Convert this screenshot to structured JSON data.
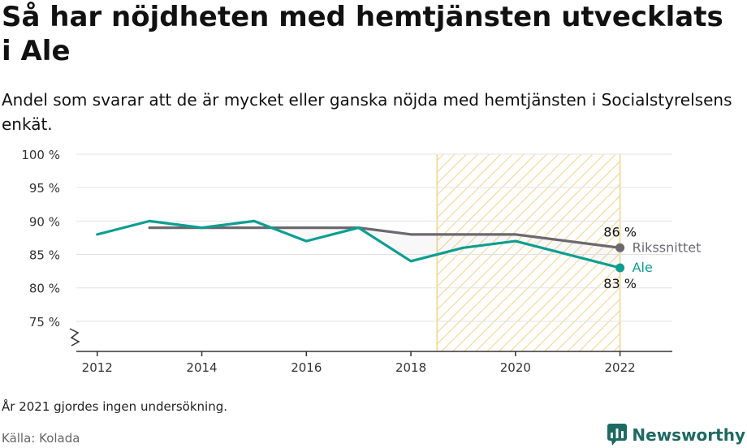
{
  "title": "Så har nöjdheten med hemtjänsten utvecklats i Ale",
  "subtitle": "Andel som svarar att de är mycket eller ganska nöjda med hemtjänsten i Socialstyrelsens enkät.",
  "footnote": "År 2021 gjordes ingen undersökning.",
  "source": "Källa: Kolada",
  "brand": {
    "name": "Newsworthy",
    "icon": "newsworthy-logo-icon"
  },
  "colors": {
    "ale": "#0e9e91",
    "riket": "#6b6870",
    "hatch": "#f5d289",
    "grid": "#e3e3e3",
    "axis": "#333333",
    "brand": "#1d6a63"
  },
  "chart_data": {
    "type": "line",
    "x": [
      2012,
      2013,
      2014,
      2015,
      2016,
      2017,
      2018,
      2019,
      2020,
      2022
    ],
    "xticks": [
      2012,
      2014,
      2016,
      2018,
      2020,
      2022
    ],
    "xtick_labels": [
      "2012",
      "2014",
      "2016",
      "2018",
      "2020",
      "2022"
    ],
    "yticks": [
      75,
      80,
      85,
      90,
      95,
      100
    ],
    "ytick_labels": [
      "75 %",
      "80 %",
      "85 %",
      "90 %",
      "95 %",
      "100 %"
    ],
    "xlim": [
      2011.6,
      2023
    ],
    "ylim": [
      70.5,
      100
    ],
    "axis_break": true,
    "grid": true,
    "shaded_period": [
      2018.5,
      2022
    ],
    "series": [
      {
        "name": "Rikssnittet",
        "x": [
          2013,
          2014,
          2015,
          2016,
          2017,
          2018,
          2019,
          2020,
          2022
        ],
        "values": [
          89,
          89,
          89,
          89,
          89,
          88,
          88,
          88,
          86
        ],
        "end_label": "86 %",
        "color": "#6b6870"
      },
      {
        "name": "Ale",
        "x": [
          2012,
          2013,
          2014,
          2015,
          2016,
          2017,
          2018,
          2019,
          2020,
          2022
        ],
        "values": [
          88,
          90,
          89,
          90,
          87,
          89,
          84,
          86,
          87,
          83
        ],
        "end_label": "83 %",
        "color": "#0e9e91"
      }
    ]
  }
}
